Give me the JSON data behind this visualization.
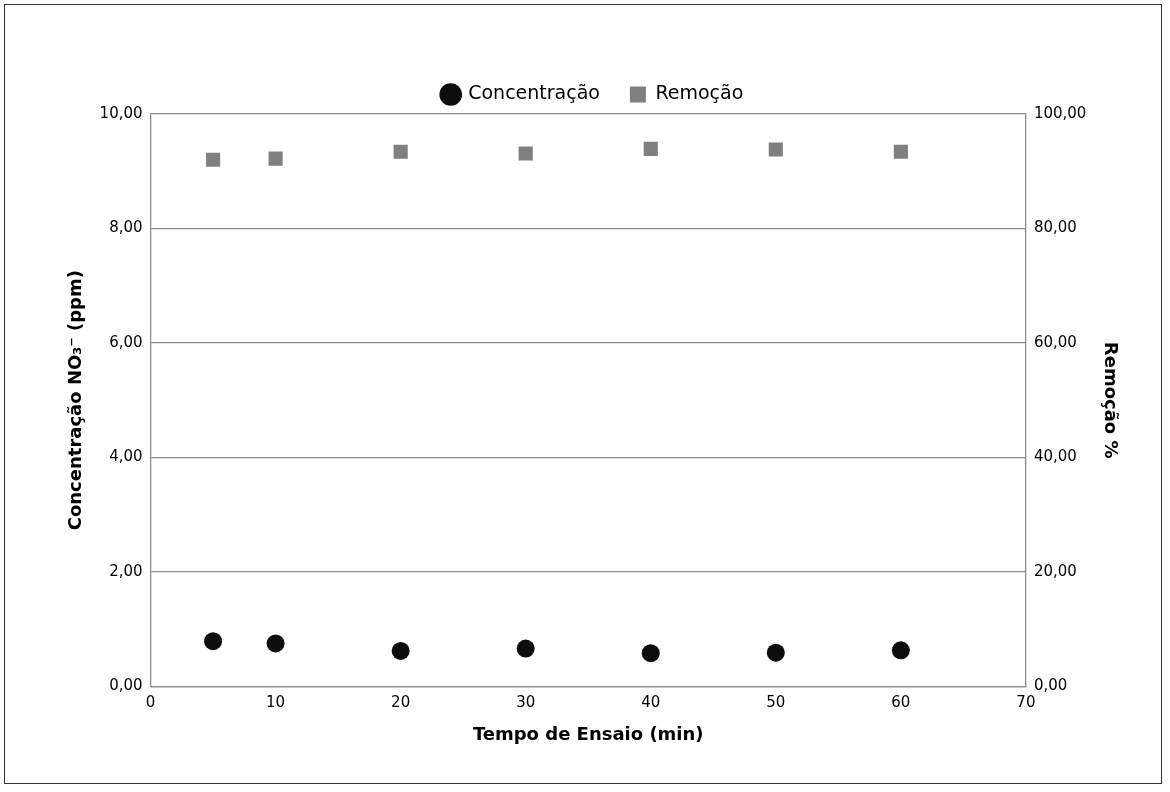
{
  "chart_data": {
    "type": "scatter",
    "xlabel": "Tempo de Ensaio (min)",
    "ylabel": "Concentração NO₃⁻ (ppm)",
    "y2label": "Remoção %",
    "x": [
      5,
      10,
      20,
      30,
      40,
      50,
      60
    ],
    "series": [
      {
        "name": "Concentração",
        "color": "#0d0d0d",
        "marker": "circle",
        "values": [
          0.79,
          0.75,
          0.62,
          0.66,
          0.58,
          0.59,
          0.63
        ]
      },
      {
        "name": "Remoção",
        "color": "#808080",
        "marker": "square",
        "axis": "y2",
        "values": [
          92.0,
          92.2,
          93.4,
          93.1,
          93.9,
          93.8,
          93.4
        ]
      }
    ],
    "xlim": [
      0,
      70
    ],
    "xticks": [
      0,
      10,
      20,
      30,
      40,
      50,
      60,
      70
    ],
    "ylim": [
      0,
      10
    ],
    "yticks": [
      {
        "value": 0,
        "label": "0,00"
      },
      {
        "value": 2,
        "label": "2,00"
      },
      {
        "value": 4,
        "label": "4,00"
      },
      {
        "value": 6,
        "label": "6,00"
      },
      {
        "value": 8,
        "label": "8,00"
      },
      {
        "value": 10,
        "label": "10,00"
      }
    ],
    "y2lim": [
      0,
      100
    ],
    "y2ticks": [
      {
        "value": 0,
        "label": "0,00"
      },
      {
        "value": 20,
        "label": "20,00"
      },
      {
        "value": 40,
        "label": "40,00"
      },
      {
        "value": 60,
        "label": "60,00"
      },
      {
        "value": 80,
        "label": "80,00"
      },
      {
        "value": 100,
        "label": "100,00"
      }
    ],
    "grid": "y",
    "legend": "top"
  }
}
